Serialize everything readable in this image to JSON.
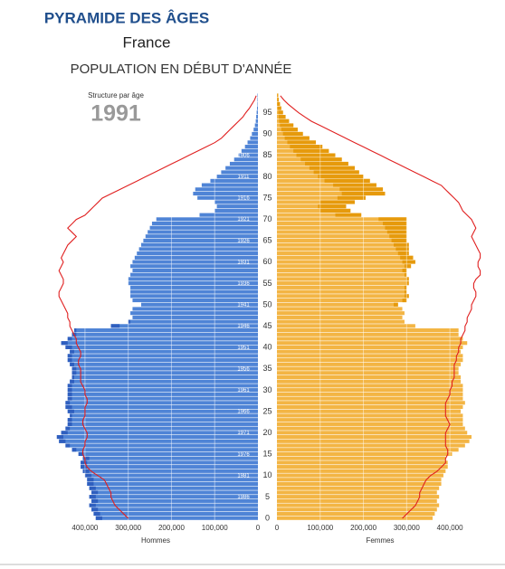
{
  "chart_data": {
    "type": "pyramid",
    "title": "PYRAMIDE DES ÂGES",
    "subtitle": "France",
    "heading": "POPULATION EN DÉBUT D'ANNÉE",
    "annotation": "Structure par âge",
    "year": "1991",
    "ylim": [
      0,
      100
    ],
    "yticks": [
      0,
      5,
      10,
      15,
      20,
      25,
      30,
      35,
      40,
      45,
      50,
      55,
      60,
      65,
      70,
      75,
      80,
      85,
      90,
      95
    ],
    "cohort_ticks": [
      {
        "value": 5,
        "label": "1986"
      },
      {
        "value": 10,
        "label": "1981"
      },
      {
        "value": 15,
        "label": "1976"
      },
      {
        "value": 20,
        "label": "1971"
      },
      {
        "value": 25,
        "label": "1966"
      },
      {
        "value": 30,
        "label": "1961"
      },
      {
        "value": 35,
        "label": "1956"
      },
      {
        "value": 40,
        "label": "1951"
      },
      {
        "value": 45,
        "label": "1946"
      },
      {
        "value": 50,
        "label": "1941"
      },
      {
        "value": 55,
        "label": "1936"
      },
      {
        "value": 60,
        "label": "1931"
      },
      {
        "value": 65,
        "label": "1926"
      },
      {
        "value": 70,
        "label": "1921"
      },
      {
        "value": 75,
        "label": "1916"
      },
      {
        "value": 80,
        "label": "1911"
      },
      {
        "value": 85,
        "label": "1906"
      }
    ],
    "xlim": [
      0,
      450000
    ],
    "xticks": [
      0,
      {
        "value": 100000,
        "label": "100,000"
      },
      {
        "value": 200000,
        "label": "200,000"
      },
      {
        "value": 300000,
        "label": "300,000"
      },
      {
        "value": 400000,
        "label": "400,000"
      }
    ],
    "grid": true,
    "series": [
      {
        "name": "Hommes",
        "color": "#4f84d6",
        "surplus_color": "#2f5fbf",
        "values": [
          375000,
          380000,
          385000,
          390000,
          385000,
          390000,
          385000,
          390000,
          395000,
          395000,
          400000,
          405000,
          410000,
          410000,
          405000,
          415000,
          430000,
          445000,
          460000,
          465000,
          455000,
          445000,
          440000,
          440000,
          435000,
          440000,
          445000,
          445000,
          440000,
          440000,
          440000,
          440000,
          435000,
          430000,
          430000,
          430000,
          435000,
          440000,
          440000,
          435000,
          445000,
          455000,
          440000,
          430000,
          425000,
          340000,
          300000,
          290000,
          295000,
          290000,
          270000,
          290000,
          295000,
          295000,
          295000,
          300000,
          300000,
          295000,
          290000,
          295000,
          290000,
          285000,
          280000,
          275000,
          270000,
          265000,
          260000,
          255000,
          250000,
          245000,
          235000,
          135000,
          100000,
          95000,
          100000,
          140000,
          150000,
          145000,
          130000,
          110000,
          95000,
          85000,
          75000,
          65000,
          55000,
          45000,
          38000,
          30000,
          24000,
          18000,
          14000,
          10000,
          7000,
          5000,
          4000,
          3000,
          2000,
          1000,
          1000,
          1000
        ]
      },
      {
        "name": "Femmes",
        "color": "#f3b544",
        "surplus_color": "#e69a0c",
        "values": [
          360000,
          365000,
          370000,
          375000,
          370000,
          375000,
          370000,
          375000,
          380000,
          380000,
          385000,
          390000,
          395000,
          395000,
          390000,
          405000,
          420000,
          435000,
          445000,
          450000,
          440000,
          435000,
          430000,
          430000,
          430000,
          425000,
          430000,
          435000,
          430000,
          430000,
          430000,
          430000,
          425000,
          425000,
          420000,
          420000,
          425000,
          430000,
          430000,
          425000,
          430000,
          440000,
          430000,
          420000,
          420000,
          320000,
          295000,
          290000,
          295000,
          290000,
          280000,
          300000,
          305000,
          300000,
          300000,
          305000,
          305000,
          300000,
          300000,
          310000,
          320000,
          315000,
          305000,
          305000,
          305000,
          300000,
          300000,
          300000,
          300000,
          300000,
          300000,
          195000,
          170000,
          160000,
          180000,
          205000,
          250000,
          245000,
          230000,
          215000,
          200000,
          190000,
          180000,
          165000,
          150000,
          135000,
          120000,
          105000,
          90000,
          75000,
          60000,
          48000,
          38000,
          28000,
          20000,
          14000,
          10000,
          7000,
          4000,
          3000
        ]
      }
    ],
    "outline": {
      "color": "#e02020",
      "men": [
        300000,
        310000,
        320000,
        330000,
        335000,
        340000,
        340000,
        345000,
        350000,
        355000,
        370000,
        385000,
        395000,
        400000,
        400000,
        405000,
        405000,
        400000,
        400000,
        395000,
        395000,
        400000,
        405000,
        405000,
        400000,
        400000,
        400000,
        395000,
        395000,
        400000,
        400000,
        405000,
        410000,
        410000,
        410000,
        410000,
        415000,
        415000,
        410000,
        410000,
        415000,
        420000,
        420000,
        425000,
        430000,
        435000,
        435000,
        440000,
        440000,
        445000,
        450000,
        455000,
        460000,
        460000,
        455000,
        450000,
        450000,
        455000,
        460000,
        455000,
        450000,
        455000,
        450000,
        445000,
        440000,
        430000,
        420000,
        430000,
        440000,
        430000,
        420000,
        400000,
        390000,
        380000,
        370000,
        360000,
        340000,
        320000,
        300000,
        280000,
        260000,
        240000,
        220000,
        200000,
        180000,
        160000,
        140000,
        120000,
        100000,
        85000,
        75000,
        65000,
        55000,
        45000,
        35000,
        28000,
        20000,
        14000,
        8000,
        4000
      ],
      "women": [
        290000,
        300000,
        310000,
        320000,
        325000,
        330000,
        330000,
        335000,
        340000,
        345000,
        355000,
        370000,
        380000,
        390000,
        390000,
        395000,
        395000,
        390000,
        390000,
        390000,
        390000,
        395000,
        400000,
        395000,
        390000,
        390000,
        390000,
        390000,
        395000,
        400000,
        400000,
        405000,
        405000,
        410000,
        410000,
        410000,
        410000,
        415000,
        415000,
        420000,
        420000,
        425000,
        425000,
        430000,
        435000,
        435000,
        440000,
        440000,
        445000,
        450000,
        450000,
        455000,
        460000,
        460000,
        455000,
        455000,
        460000,
        470000,
        470000,
        465000,
        465000,
        470000,
        470000,
        465000,
        460000,
        455000,
        450000,
        455000,
        460000,
        455000,
        450000,
        440000,
        430000,
        425000,
        420000,
        410000,
        400000,
        390000,
        380000,
        360000,
        340000,
        320000,
        300000,
        280000,
        260000,
        240000,
        220000,
        200000,
        180000,
        160000,
        140000,
        120000,
        100000,
        80000,
        65000,
        50000,
        38000,
        26000,
        16000,
        8000
      ]
    }
  }
}
